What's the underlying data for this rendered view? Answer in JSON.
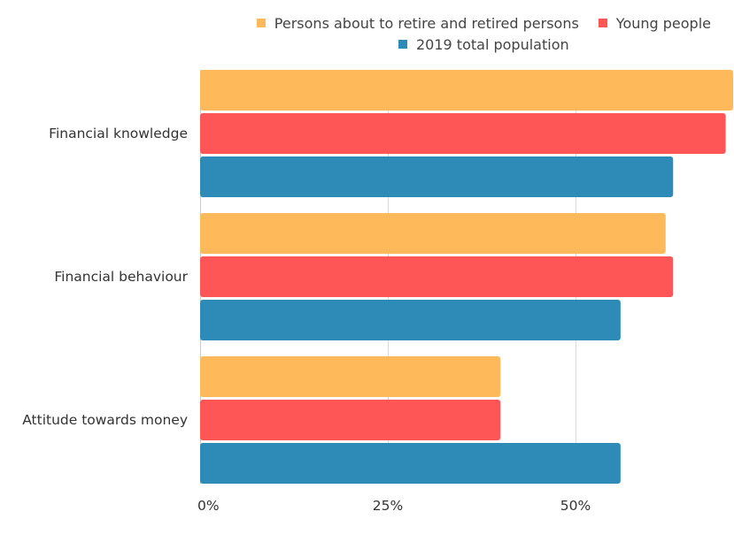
{
  "chart_data": {
    "type": "bar",
    "orientation": "horizontal",
    "title": "",
    "xlabel": "",
    "ylabel": "",
    "categories": [
      "Financial knowledge",
      "Financial behaviour",
      "Attitude towards money"
    ],
    "series": [
      {
        "name": "Persons about to retire and retired persons",
        "color": "#fdb95a",
        "values": [
          71,
          62,
          40
        ]
      },
      {
        "name": "Young people",
        "color": "#fe5656",
        "values": [
          70,
          63,
          40
        ]
      },
      {
        "name": "2019 total population",
        "color": "#2e8bb8",
        "values": [
          63,
          56,
          56
        ]
      }
    ],
    "x_ticks": [
      {
        "value": 0,
        "label": "0%"
      },
      {
        "value": 25,
        "label": "25%"
      },
      {
        "value": 50,
        "label": "50%"
      }
    ],
    "xlim": [
      0,
      71
    ],
    "grid": true,
    "legend_position": "top-right",
    "unit": "%"
  }
}
